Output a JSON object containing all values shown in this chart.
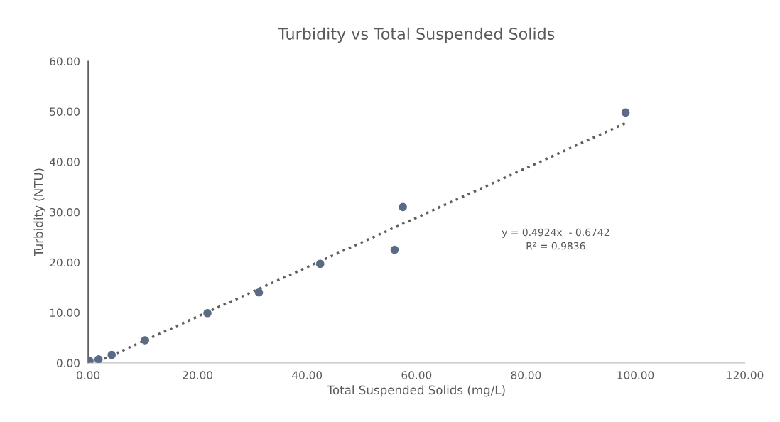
{
  "chart_data": {
    "type": "scatter",
    "title": "Turbidity vs Total Suspended Solids",
    "xlabel": "Total Suspended Solids (mg/L)",
    "ylabel": "Turbidity (NTU)",
    "series": [
      {
        "color": "#5b6b85",
        "marker": "circle",
        "x": [
          0.25,
          1.9,
          4.3,
          10.4,
          21.8,
          31.2,
          42.4,
          56.0,
          57.5,
          98.2
        ],
        "values": [
          0.4,
          0.7,
          1.6,
          4.5,
          9.9,
          14.0,
          19.7,
          22.5,
          31.0,
          49.8
        ]
      },
      {
        "type": "line",
        "color": "#5f5f5f",
        "line_style": "dotted",
        "marker": "none",
        "x": [
          1.9,
          98.2
        ],
        "values": [
          0.3,
          47.7
        ]
      }
    ],
    "annotations": [
      "y = 0.4924x  - 0.6742",
      "R² = 0.9836"
    ],
    "xlim": [
      0,
      120
    ],
    "ylim": [
      0,
      60
    ],
    "xticks": [
      {
        "value": 0,
        "label": "0.00"
      },
      {
        "value": 20,
        "label": "20.00"
      },
      {
        "value": 40,
        "label": "40.00"
      },
      {
        "value": 60,
        "label": "60.00"
      },
      {
        "value": 80,
        "label": "80.00"
      },
      {
        "value": 100,
        "label": "100.00"
      },
      {
        "value": 120,
        "label": "120.00"
      }
    ],
    "yticks": [
      {
        "value": 0,
        "label": "0.00"
      },
      {
        "value": 10,
        "label": "10.00"
      },
      {
        "value": 20,
        "label": "20.00"
      },
      {
        "value": 30,
        "label": "30.00"
      },
      {
        "value": 40,
        "label": "40.00"
      },
      {
        "value": 50,
        "label": "50.00"
      },
      {
        "value": 60,
        "label": "60.00"
      }
    ],
    "grid": false,
    "legend": false
  }
}
